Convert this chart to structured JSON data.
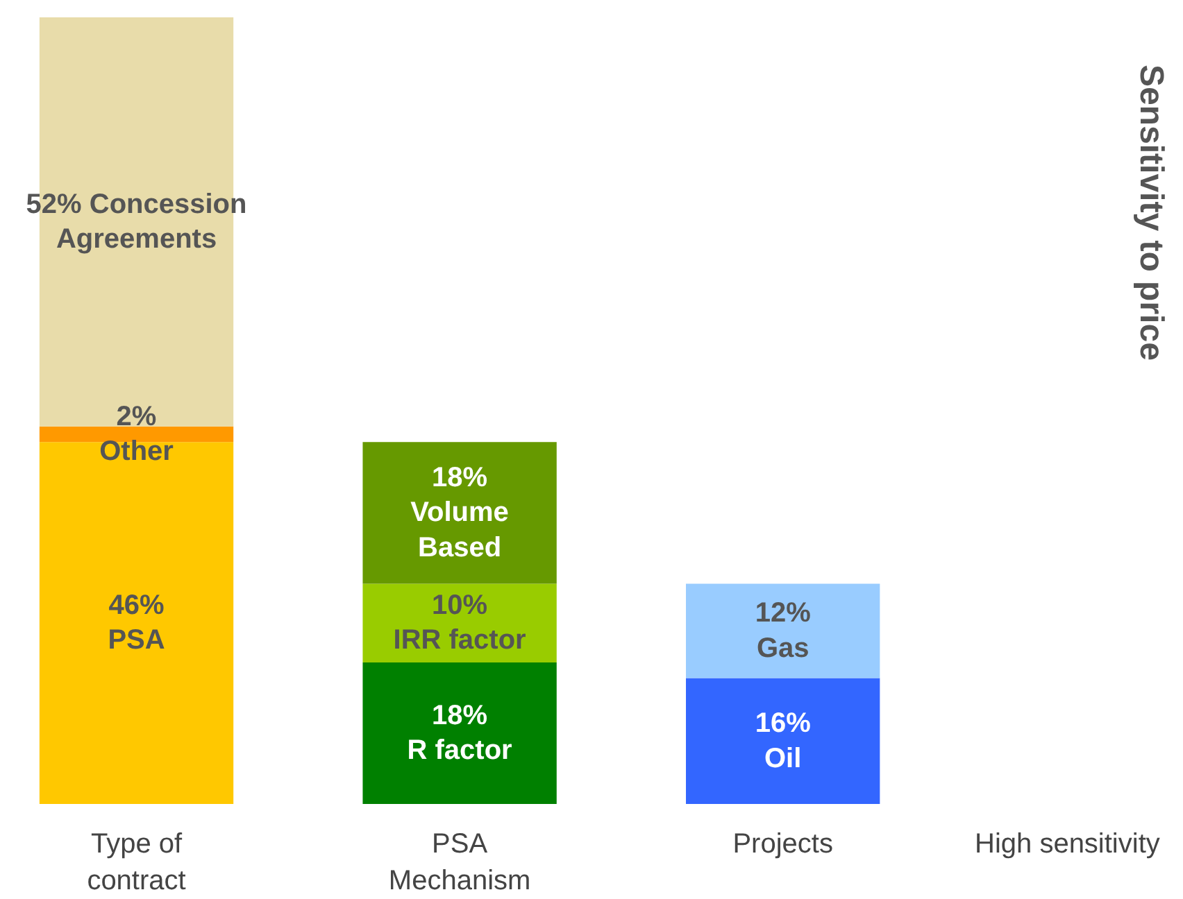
{
  "chart_data": {
    "type": "bar",
    "stacked": true,
    "categories": [
      "Type of\ncontract",
      "PSA\nMechanism",
      "Projects"
    ],
    "ylim": [
      0,
      100
    ],
    "tick_labels": "x",
    "grid": false,
    "series": [
      {
        "colors": [
          "#ffc800",
          "#008000",
          "#3366ff"
        ],
        "values": [
          46,
          18,
          16
        ],
        "value_labels": [
          "46%\nPSA",
          "18%\nR factor",
          "16%\nOil"
        ]
      },
      {
        "colors": [
          "#ff9900",
          "#99cc00",
          "#99ccff"
        ],
        "values": [
          2,
          10,
          12
        ],
        "value_labels": [
          "2%\nOther",
          "10%\nIRR factor",
          "12%\nGas"
        ]
      },
      {
        "colors": [
          "#e8dcaa",
          "#669900",
          null
        ],
        "values": [
          52,
          18,
          null
        ],
        "value_labels": [
          "52% Concession\nAgreements",
          "18%\nVolume\nBased",
          null
        ]
      }
    ],
    "annotations": [
      "Sensitivity to price",
      "High sensitivity"
    ]
  }
}
